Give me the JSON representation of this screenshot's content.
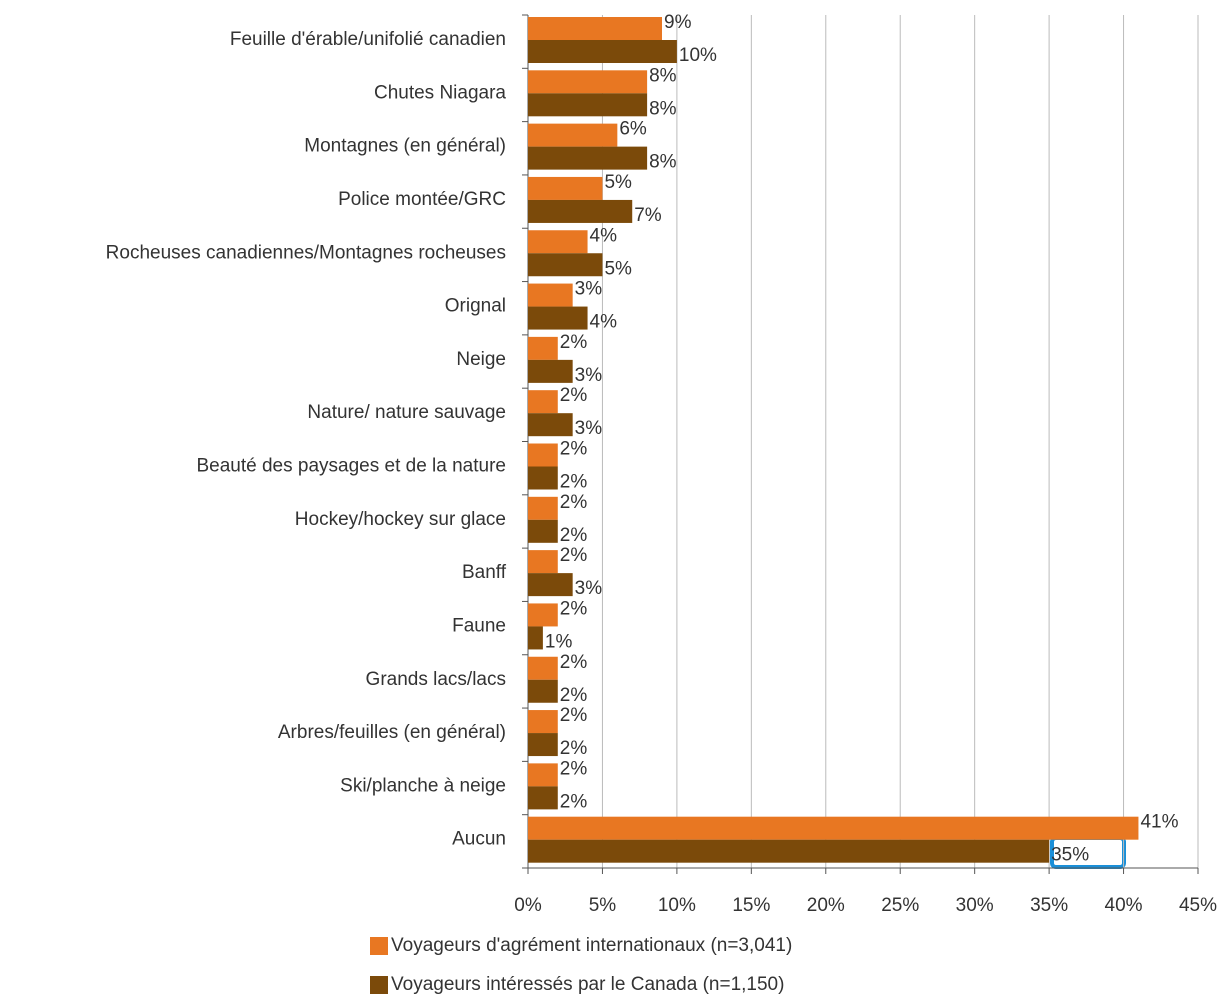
{
  "chart_data": {
    "type": "barh",
    "categories": [
      "Feuille d'érable/unifolié canadien",
      "Chutes Niagara",
      "Montagnes (en général)",
      "Police montée/GRC",
      "Rocheuses canadiennes/Montagnes rocheuses",
      "Orignal",
      "Neige",
      "Nature/ nature sauvage",
      "Beauté des paysages et de la nature",
      "Hockey/hockey sur glace",
      "Banff",
      "Faune",
      "Grands lacs/lacs",
      "Arbres/feuilles (en général)",
      "Ski/planche à neige",
      "Aucun"
    ],
    "series": [
      {
        "name": "Voyageurs d'agrément internationaux (n=3,041)",
        "color": "#e87722",
        "values": [
          9,
          8,
          6,
          5,
          4,
          3,
          2,
          2,
          2,
          2,
          2,
          2,
          2,
          2,
          2,
          41
        ],
        "value_labels": [
          "9%",
          "8%",
          "6%",
          "5%",
          "4%",
          "3%",
          "2%",
          "2%",
          "2%",
          "2%",
          "2%",
          "2%",
          "2%",
          "2%",
          "2%",
          "41%"
        ]
      },
      {
        "name": "Voyageurs intéressés par le Canada (n=1,150)",
        "color": "#7b4a0a",
        "values": [
          10,
          8,
          8,
          7,
          5,
          4,
          3,
          3,
          2,
          2,
          3,
          1,
          2,
          2,
          2,
          35
        ],
        "value_labels": [
          "10%",
          "8%",
          "8%",
          "7%",
          "5%",
          "4%",
          "3%",
          "3%",
          "2%",
          "2%",
          "3%",
          "1%",
          "2%",
          "2%",
          "2%",
          "35%"
        ]
      }
    ],
    "xlim": [
      0,
      45
    ],
    "xticks": [
      {
        "value": 0,
        "label": "0%"
      },
      {
        "value": 5,
        "label": "5%"
      },
      {
        "value": 10,
        "label": "10%"
      },
      {
        "value": 15,
        "label": "15%"
      },
      {
        "value": 20,
        "label": "20%"
      },
      {
        "value": 25,
        "label": "25%"
      },
      {
        "value": 30,
        "label": "30%"
      },
      {
        "value": 35,
        "label": "35%"
      },
      {
        "value": 40,
        "label": "40%"
      },
      {
        "value": 45,
        "label": "45%"
      }
    ],
    "grid": true
  }
}
